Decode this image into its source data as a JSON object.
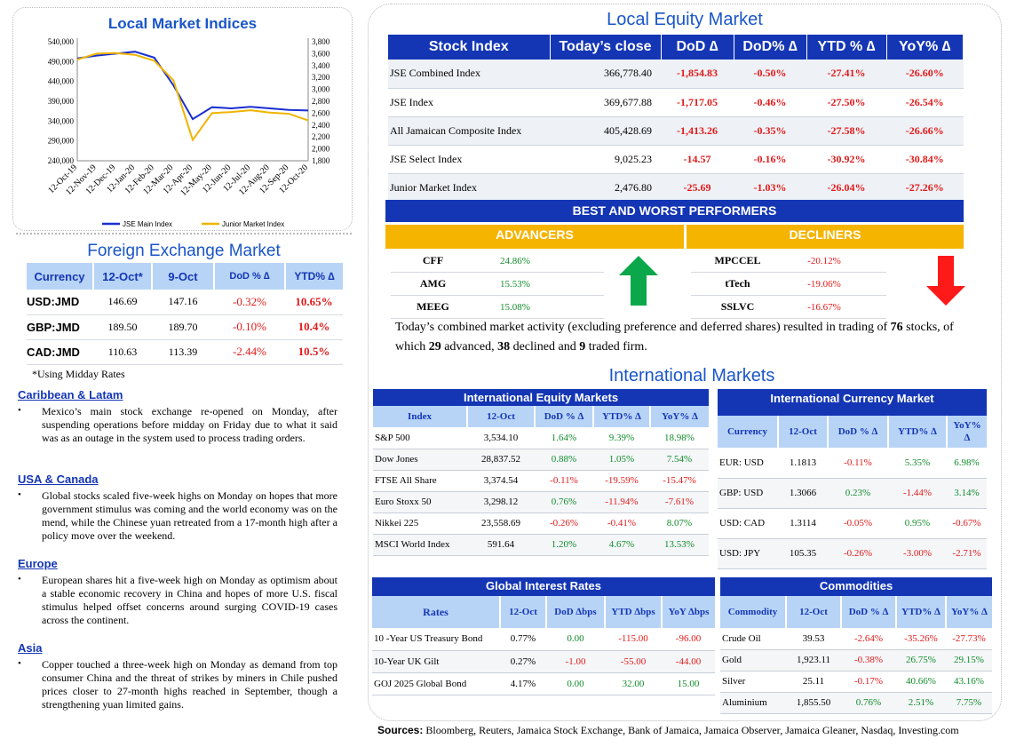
{
  "local_indices": {
    "title": "Local Market Indices",
    "left_axis": [
      "540,000",
      "490,000",
      "440,000",
      "390,000",
      "340,000",
      "290,000",
      "240,000"
    ],
    "right_axis": [
      "3,800",
      "3,600",
      "3,400",
      "3,200",
      "3,000",
      "2,800",
      "2,600",
      "2,400",
      "2,200",
      "2,000",
      "1,800"
    ],
    "x_labels": [
      "12-Oct-19",
      "12-Nov-19",
      "12-Dec-19",
      "12-Jan-20",
      "12-Feb-20",
      "12-Mar-20",
      "12-Apr-20",
      "12-May-20",
      "12-Jun-20",
      "12-Jul-20",
      "12-Aug-20",
      "12-Sep-20",
      "12-Oct-20"
    ],
    "legend": [
      "JSE Main Index",
      "Junior Market Index"
    ],
    "colors": {
      "main": "#1a2fd0",
      "junior": "#f0b400"
    }
  },
  "chart_data": {
    "type": "line",
    "x": [
      "12-Oct-19",
      "12-Nov-19",
      "12-Dec-19",
      "12-Jan-20",
      "12-Feb-20",
      "12-Mar-20",
      "12-Apr-20",
      "12-May-20",
      "12-Jun-20",
      "12-Jul-20",
      "12-Aug-20",
      "12-Sep-20",
      "12-Oct-20"
    ],
    "series": [
      {
        "name": "JSE Main Index",
        "axis": "left",
        "values": [
          498000,
          505000,
          510000,
          515000,
          500000,
          430000,
          345000,
          375000,
          372000,
          376000,
          372000,
          368000,
          366778
        ]
      },
      {
        "name": "Junior Market Index",
        "axis": "right",
        "values": [
          3500,
          3600,
          3610,
          3580,
          3480,
          3150,
          2150,
          2600,
          2620,
          2650,
          2610,
          2590,
          2477
        ]
      }
    ],
    "ylim_left": [
      240000,
      540000
    ],
    "ylim_right": [
      1800,
      3800
    ]
  },
  "fx": {
    "title": "Foreign Exchange Market",
    "headers": [
      "Currency",
      "12-Oct*",
      "9-Oct",
      "DoD % ∆",
      "YTD% ∆"
    ],
    "rows": [
      {
        "cur": "USD:JMD",
        "a": "146.69",
        "b": "147.16",
        "dod": "-0.32%",
        "ytd": "10.65%"
      },
      {
        "cur": "GBP:JMD",
        "a": "189.50",
        "b": "189.70",
        "dod": "-0.10%",
        "ytd": "10.4%"
      },
      {
        "cur": "CAD:JMD",
        "a": "110.63",
        "b": "113.39",
        "dod": "-2.44%",
        "ytd": "10.5%"
      }
    ],
    "note": "*Using Midday Rates"
  },
  "news": [
    {
      "head": "Caribbean & Latam",
      "body": "Mexico’s main stock exchange re-opened on Monday, after suspending operations before midday on Friday due to what it said was as an outage in the system used to process trading orders."
    },
    {
      "head": "USA & Canada",
      "body": "Global stocks scaled five-week highs on Monday on hopes that more government stimulus was coming and the world economy was on the mend, while the Chinese yuan retreated from a 17-month high after a policy move over the weekend."
    },
    {
      "head": "Europe",
      "body": "European shares hit a five-week high on Monday as optimism about a stable economic recovery in China and hopes of more U.S. fiscal stimulus helped offset concerns around surging COVID-19 cases across the continent."
    },
    {
      "head": "Asia",
      "body": "Copper touched a three-week high on Monday as demand from top consumer China and the threat of strikes by miners in Chile pushed prices closer to 27-month highs reached in September, though a strengthening yuan limited gains."
    }
  ],
  "equity": {
    "title": "Local Equity Market",
    "headers": [
      "Stock Index",
      "Today’s close",
      "DoD  ∆",
      "DoD% ∆",
      "YTD % ∆",
      "YoY% ∆"
    ],
    "rows": [
      {
        "name": "JSE Combined Index",
        "close": "366,778.40",
        "dod": "-1,854.83",
        "dodp": "-0.50%",
        "ytd": "-27.41%",
        "yoy": "-26.60%"
      },
      {
        "name": "JSE Index",
        "close": "369,677.88",
        "dod": "-1,717.05",
        "dodp": "-0.46%",
        "ytd": "-27.50%",
        "yoy": "-26.54%"
      },
      {
        "name": "All Jamaican Composite Index",
        "close": "405,428.69",
        "dod": "-1,413.26",
        "dodp": "-0.35%",
        "ytd": "-27.58%",
        "yoy": "-26.66%"
      },
      {
        "name": "JSE Select Index",
        "close": "9,025.23",
        "dod": "-14.57",
        "dodp": "-0.16%",
        "ytd": "-30.92%",
        "yoy": "-30.84%"
      },
      {
        "name": "Junior Market Index",
        "close": "2,476.80",
        "dod": "-25.69",
        "dodp": "-1.03%",
        "ytd": "-26.04%",
        "yoy": "-27.26%"
      }
    ]
  },
  "performers": {
    "title": "BEST AND WORST PERFORMERS",
    "advancers_label": "ADVANCERS",
    "decliners_label": "DECLINERS",
    "advancers": [
      {
        "sym": "CFF",
        "pct": "24.86%"
      },
      {
        "sym": "AMG",
        "pct": "15.53%"
      },
      {
        "sym": "MEEG",
        "pct": "15.08%"
      }
    ],
    "decliners": [
      {
        "sym": "MPCCEL",
        "pct": "-20.12%"
      },
      {
        "sym": "tTech",
        "pct": "-19.06%"
      },
      {
        "sym": "SSLVC",
        "pct": "-16.67%"
      }
    ]
  },
  "summary": {
    "t1": "Today’s combined market activity (excluding preference and deferred shares) resulted in trading of ",
    "n_total": "76",
    "t2": "stocks, of which ",
    "n_adv": "29",
    "t3": " advanced, ",
    "n_dec": "38",
    "t4": " declined and ",
    "n_firm": "9",
    "t5": " traded firm."
  },
  "intl": {
    "title": "International Markets",
    "equity": {
      "title": "International Equity Markets",
      "headers": [
        "Index",
        "12-Oct",
        "DoD % ∆",
        "YTD% ∆",
        "YoY% ∆"
      ],
      "rows": [
        {
          "name": "S&P 500",
          "v": "3,534.10",
          "dod": "1.64%",
          "ytd": "9.39%",
          "yoy": "18.98%"
        },
        {
          "name": "Dow Jones",
          "v": "28,837.52",
          "dod": "0.88%",
          "ytd": "1.05%",
          "yoy": "7.54%"
        },
        {
          "name": "FTSE All Share",
          "v": "3,374.54",
          "dod": "-0.11%",
          "ytd": "-19.59%",
          "yoy": "-15.47%"
        },
        {
          "name": "Euro Stoxx 50",
          "v": "3,298.12",
          "dod": "0.76%",
          "ytd": "-11.94%",
          "yoy": "-7.61%"
        },
        {
          "name": "Nikkei 225",
          "v": "23,558.69",
          "dod": "-0.26%",
          "ytd": "-0.41%",
          "yoy": "8.07%"
        },
        {
          "name": "MSCI World Index",
          "v": "591.64",
          "dod": "1.20%",
          "ytd": "4.67%",
          "yoy": "13.53%"
        }
      ]
    },
    "currency": {
      "title": "International Currency Market",
      "headers": [
        "Currency",
        "12-Oct",
        "DoD % ∆",
        "YTD% ∆",
        "YoY%",
        "∆"
      ],
      "rows": [
        {
          "name": "EUR: USD",
          "v": "1.1813",
          "dod": "-0.11%",
          "ytd": "5.35%",
          "yoy": "6.98%"
        },
        {
          "name": "GBP: USD",
          "v": "1.3066",
          "dod": "0.23%",
          "ytd": "-1.44%",
          "yoy": "3.14%"
        },
        {
          "name": "USD: CAD",
          "v": "1.3114",
          "dod": "-0.05%",
          "ytd": "0.95%",
          "yoy": "-0.67%"
        },
        {
          "name": "USD: JPY",
          "v": "105.35",
          "dod": "-0.26%",
          "ytd": "-3.00%",
          "yoy": "-2.71%"
        }
      ]
    },
    "rates": {
      "title": "Global Interest Rates",
      "headers": [
        "Rates",
        "12-Oct",
        "DoD ∆bps",
        "YTD ∆bps",
        "YoY ∆bps"
      ],
      "rows": [
        {
          "name": "10 -Year US Treasury Bond",
          "v": "0.77%",
          "dod": "0.00",
          "ytd": "-115.00",
          "yoy": "-96.00"
        },
        {
          "name": "10-Year UK Gilt",
          "v": "0.27%",
          "dod": "-1.00",
          "ytd": "-55.00",
          "yoy": "-44.00"
        },
        {
          "name": "GOJ 2025 Global Bond",
          "v": "4.17%",
          "dod": "0.00",
          "ytd": "32.00",
          "yoy": "15.00"
        }
      ]
    },
    "commodities": {
      "title": "Commodities",
      "headers": [
        "Commodity",
        "12-Oct",
        "DoD % ∆",
        "YTD% ∆",
        "YoY% ∆"
      ],
      "rows": [
        {
          "name": "Crude Oil",
          "v": "39.53",
          "dod": "-2.64%",
          "ytd": "-35.26%",
          "yoy": "-27.73%"
        },
        {
          "name": "Gold",
          "v": "1,923.11",
          "dod": "-0.38%",
          "ytd": "26.75%",
          "yoy": "29.15%"
        },
        {
          "name": "Silver",
          "v": "25.11",
          "dod": "-0.17%",
          "ytd": "40.66%",
          "yoy": "43.16%"
        },
        {
          "name": "Aluminium",
          "v": "1,855.50",
          "dod": "0.76%",
          "ytd": "2.51%",
          "yoy": "7.75%"
        }
      ]
    }
  },
  "sources": {
    "label": "Sources:",
    "text": " Bloomberg, Reuters, Jamaica Stock Exchange, Bank of Jamaica, Jamaica Observer, Jamaica Gleaner, Nasdaq, Investing.com"
  }
}
